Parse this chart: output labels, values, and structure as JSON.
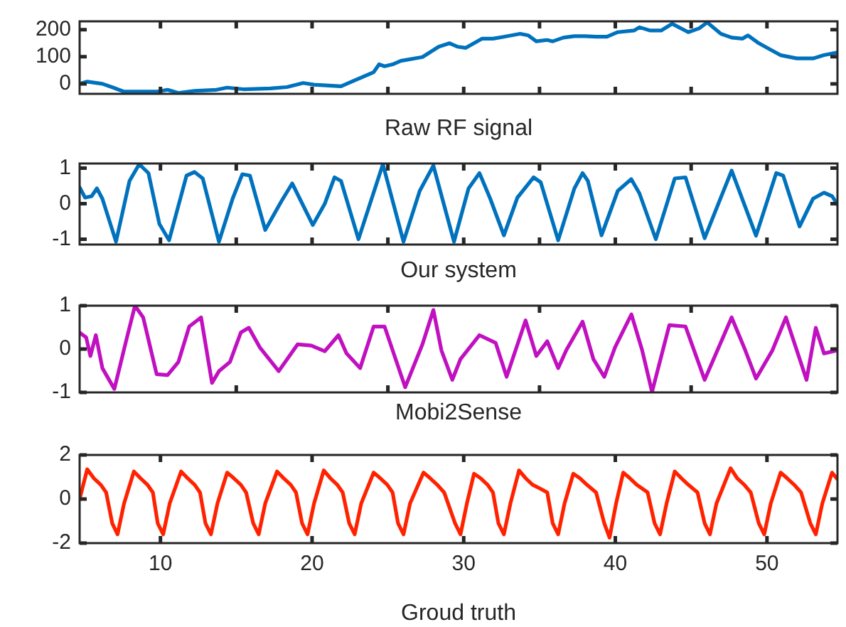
{
  "chart_data": [
    {
      "type": "line",
      "xlabel": "Raw RF signal",
      "xlim": [
        4.67,
        54.65
      ],
      "ylim": [
        -37,
        231
      ],
      "xticks": [
        {
          "value": 10,
          "label": null
        },
        {
          "value": 15,
          "label": null
        },
        {
          "value": 20,
          "label": null
        },
        {
          "value": 25,
          "label": null
        },
        {
          "value": 30,
          "label": null
        },
        {
          "value": 35,
          "label": null
        },
        {
          "value": 40,
          "label": null
        },
        {
          "value": 45,
          "label": null
        },
        {
          "value": 50,
          "label": null
        }
      ],
      "yticks": [
        0,
        100,
        200
      ],
      "tick_labels": "y",
      "grid": false,
      "legend": false,
      "marker": "none",
      "line_style": "solid",
      "series": [
        {
          "color": "#0072bd",
          "x": [
            4.67,
            5.17,
            6.17,
            6.89,
            7.6,
            8.68,
            9.75,
            10.47,
            11.18,
            12.25,
            13.69,
            14.4,
            15.47,
            17.26,
            18.34,
            19.41,
            20.13,
            21.91,
            22.99,
            24.06,
            24.42,
            24.78,
            25.31,
            25.85,
            27.28,
            28.35,
            29.07,
            29.61,
            30.14,
            31.22,
            31.93,
            32.65,
            33.72,
            34.26,
            34.79,
            35.51,
            35.87,
            36.58,
            37.3,
            38.01,
            38.73,
            39.45,
            40.16,
            41.23,
            41.59,
            42.31,
            43.02,
            43.74,
            44.81,
            45.53,
            46.06,
            46.96,
            47.67,
            48.39,
            48.75,
            49.46,
            50.18,
            50.89,
            51.97,
            53.04,
            53.76,
            54.65
          ],
          "values": [
            0,
            8,
            0,
            -14,
            -29,
            -29,
            -29,
            -22,
            -34,
            -26,
            -22,
            -14,
            -20,
            -17,
            -12,
            3,
            -3,
            -9,
            17,
            43,
            72,
            65,
            72,
            85,
            99,
            137,
            150,
            137,
            133,
            167,
            167,
            174,
            185,
            179,
            157,
            162,
            157,
            171,
            176,
            176,
            174,
            174,
            191,
            197,
            209,
            197,
            197,
            222,
            191,
            205,
            227,
            185,
            171,
            167,
            179,
            150,
            128,
            106,
            94,
            94,
            106,
            116
          ]
        }
      ]
    },
    {
      "type": "line",
      "xlabel": "Our system",
      "xlim": [
        4.67,
        54.65
      ],
      "ylim": [
        -1.15,
        1.13
      ],
      "xticks": [
        {
          "value": 10,
          "label": null
        },
        {
          "value": 15,
          "label": null
        },
        {
          "value": 20,
          "label": null
        },
        {
          "value": 25,
          "label": null
        },
        {
          "value": 30,
          "label": null
        },
        {
          "value": 35,
          "label": null
        },
        {
          "value": 40,
          "label": null
        },
        {
          "value": 45,
          "label": null
        },
        {
          "value": 50,
          "label": null
        }
      ],
      "yticks": [
        -1,
        0,
        1
      ],
      "tick_labels": "y",
      "grid": false,
      "legend": false,
      "marker": "none",
      "line_style": "solid",
      "series": [
        {
          "color": "#0072bd",
          "x": [
            4.67,
            5.03,
            5.46,
            5.81,
            6.17,
            7.07,
            7.96,
            8.6,
            9.21,
            9.93,
            10.57,
            11.72,
            12.25,
            12.79,
            13.86,
            14.76,
            15.4,
            15.9,
            16.91,
            17.98,
            18.69,
            20.05,
            20.84,
            21.48,
            21.91,
            23.06,
            24.67,
            26.03,
            27.1,
            28.0,
            29.36,
            30.32,
            31.04,
            31.75,
            32.65,
            33.54,
            34.61,
            35.08,
            36.23,
            37.3,
            37.84,
            38.19,
            39.09,
            40.16,
            41.05,
            41.59,
            42.67,
            43.92,
            44.63,
            45.89,
            47.67,
            49.28,
            50.61,
            51.07,
            52.15,
            53.04,
            53.76,
            54.3,
            54.65
          ],
          "values": [
            0.46,
            0.17,
            0.21,
            0.43,
            0.14,
            -1.07,
            0.64,
            1.11,
            0.86,
            -0.57,
            -1.03,
            0.79,
            0.89,
            0.71,
            -1.07,
            0.14,
            0.83,
            0.79,
            -0.74,
            0.07,
            0.57,
            -0.6,
            0,
            0.74,
            0.64,
            -1,
            1.11,
            -1.07,
            0.36,
            1.07,
            -1.07,
            0.43,
            0.86,
            0.14,
            -0.89,
            0.17,
            0.74,
            0.6,
            -1.03,
            0.43,
            0.86,
            0.64,
            -0.89,
            0.36,
            0.69,
            0.29,
            -1,
            0.71,
            0.74,
            -0.97,
            0.93,
            -0.9,
            0.86,
            0.79,
            -0.64,
            0.14,
            0.31,
            0.21,
            -0.03
          ]
        }
      ]
    },
    {
      "type": "line",
      "xlabel": "Mobi2Sense",
      "xlim": [
        4.67,
        54.65
      ],
      "ylim": [
        -1,
        1
      ],
      "xticks": [
        {
          "value": 15,
          "label": null
        },
        {
          "value": 25,
          "label": null
        },
        {
          "value": 35,
          "label": null
        },
        {
          "value": 45,
          "label": null
        }
      ],
      "yticks": [
        -1,
        0,
        1
      ],
      "tick_labels": "y",
      "grid": false,
      "legend": false,
      "marker": "none",
      "line_style": "solid",
      "series": [
        {
          "color": "#c010c0",
          "x": [
            4.67,
            5.1,
            5.38,
            5.74,
            6.17,
            6.96,
            7.78,
            8.32,
            8.86,
            9.75,
            10.47,
            11.18,
            11.9,
            12.68,
            13.4,
            13.86,
            14.58,
            15.3,
            15.83,
            16.55,
            17.8,
            19.05,
            19.95,
            20.84,
            21.74,
            22.27,
            23.17,
            24.06,
            24.78,
            26.14,
            27.28,
            28.0,
            28.53,
            29.25,
            29.79,
            31.04,
            32.11,
            32.83,
            34.08,
            34.79,
            35.51,
            36.23,
            36.76,
            37.84,
            38.55,
            39.27,
            39.98,
            41.06,
            41.77,
            42.42,
            43.56,
            44.63,
            45.89,
            47.67,
            48.57,
            49.28,
            50.36,
            51.25,
            52.61,
            53.22,
            53.76,
            54.65
          ],
          "values": [
            0.38,
            0.27,
            -0.16,
            0.32,
            -0.44,
            -0.92,
            0.25,
            1,
            0.73,
            -0.58,
            -0.6,
            -0.3,
            0.52,
            0.73,
            -0.78,
            -0.51,
            -0.3,
            0.38,
            0.49,
            0.04,
            -0.51,
            0.11,
            0.08,
            -0.05,
            0.32,
            -0.1,
            -0.44,
            0.52,
            0.52,
            -0.88,
            0.11,
            0.9,
            -0.03,
            -0.71,
            -0.23,
            0.32,
            0.14,
            -0.64,
            0.66,
            -0.16,
            0.18,
            -0.44,
            -0.03,
            0.63,
            -0.23,
            -0.64,
            0.04,
            0.8,
            -0.03,
            -0.99,
            0.55,
            0.52,
            -0.71,
            0.73,
            -0.03,
            -0.68,
            -0.03,
            0.73,
            -0.71,
            0.49,
            -0.1,
            -0.03
          ]
        }
      ]
    },
    {
      "type": "line",
      "xlabel": "Groud truth",
      "xlim": [
        4.67,
        54.65
      ],
      "ylim": [
        -2,
        2
      ],
      "xticks": [
        10,
        20,
        30,
        40,
        50
      ],
      "yticks": [
        -2,
        0,
        2
      ],
      "grid": false,
      "legend": false,
      "marker": "none",
      "line_style": "solid",
      "series": [
        {
          "color": "#ff2200",
          "x": [
            4.67,
            5.17,
            5.6,
            6.06,
            6.42,
            6.82,
            7.17,
            7.6,
            8.25,
            8.68,
            9.14,
            9.5,
            9.82,
            10.18,
            10.61,
            11.36,
            11.79,
            12.25,
            12.61,
            12.97,
            13.33,
            13.76,
            14.4,
            14.83,
            15.3,
            15.65,
            16.12,
            16.48,
            16.91,
            17.69,
            18.12,
            18.59,
            18.94,
            19.34,
            19.7,
            20.13,
            20.77,
            21.2,
            21.66,
            22.02,
            22.45,
            22.81,
            23.24,
            24.06,
            24.49,
            24.96,
            25.31,
            25.67,
            26.03,
            26.46,
            27.35,
            27.78,
            28.25,
            28.71,
            29.43,
            29.79,
            30.21,
            30.68,
            31.11,
            31.57,
            31.93,
            32.29,
            32.65,
            33.08,
            33.65,
            34.08,
            34.54,
            34.97,
            35.51,
            35.87,
            36.23,
            36.65,
            37.23,
            37.66,
            38.12,
            38.73,
            39.27,
            39.62,
            40.05,
            40.52,
            40.95,
            41.41,
            42.13,
            42.59,
            42.95,
            43.38,
            43.92,
            44.35,
            44.81,
            45.42,
            45.89,
            46.24,
            46.67,
            47.6,
            48.03,
            48.5,
            48.93,
            49.46,
            49.82,
            50.25,
            50.9,
            51.32,
            51.79,
            52.25,
            52.86,
            53.22,
            53.65,
            54.29,
            54.65
          ],
          "values": [
            0,
            1.35,
            0.95,
            0.65,
            0.3,
            -1.1,
            -1.6,
            -0.2,
            1.25,
            0.95,
            0.65,
            0.3,
            -1.1,
            -1.6,
            -0.2,
            1.25,
            0.95,
            0.65,
            0.3,
            -1.1,
            -1.6,
            -0.2,
            1.2,
            0.95,
            0.65,
            0.3,
            -1.1,
            -1.6,
            -0.2,
            1.25,
            0.95,
            0.65,
            0.3,
            -1.1,
            -1.6,
            -0.2,
            1.3,
            0.95,
            0.65,
            0.3,
            -1.1,
            -1.6,
            -0.2,
            1.2,
            0.95,
            0.65,
            0.3,
            -1.1,
            -1.6,
            -0.2,
            1.2,
            0.95,
            0.65,
            0.3,
            -1.1,
            -1.6,
            -0.2,
            1.15,
            0.95,
            0.65,
            0.3,
            -1.1,
            -1.6,
            -0.2,
            1.3,
            0.95,
            0.65,
            0.5,
            0.3,
            -1.1,
            -1.6,
            -0.2,
            1.15,
            0.95,
            0.65,
            0.3,
            -1.1,
            -1.75,
            -0.2,
            1.2,
            0.95,
            0.65,
            0.3,
            -1.1,
            -1.6,
            -0.2,
            1.25,
            0.95,
            0.65,
            0.3,
            -1.1,
            -1.6,
            -0.2,
            1.4,
            0.95,
            0.65,
            0.3,
            -1.1,
            -1.6,
            -0.2,
            1.2,
            0.95,
            0.65,
            0.3,
            -1.1,
            -1.6,
            -0.2,
            1.2,
            0.9
          ]
        }
      ]
    }
  ]
}
